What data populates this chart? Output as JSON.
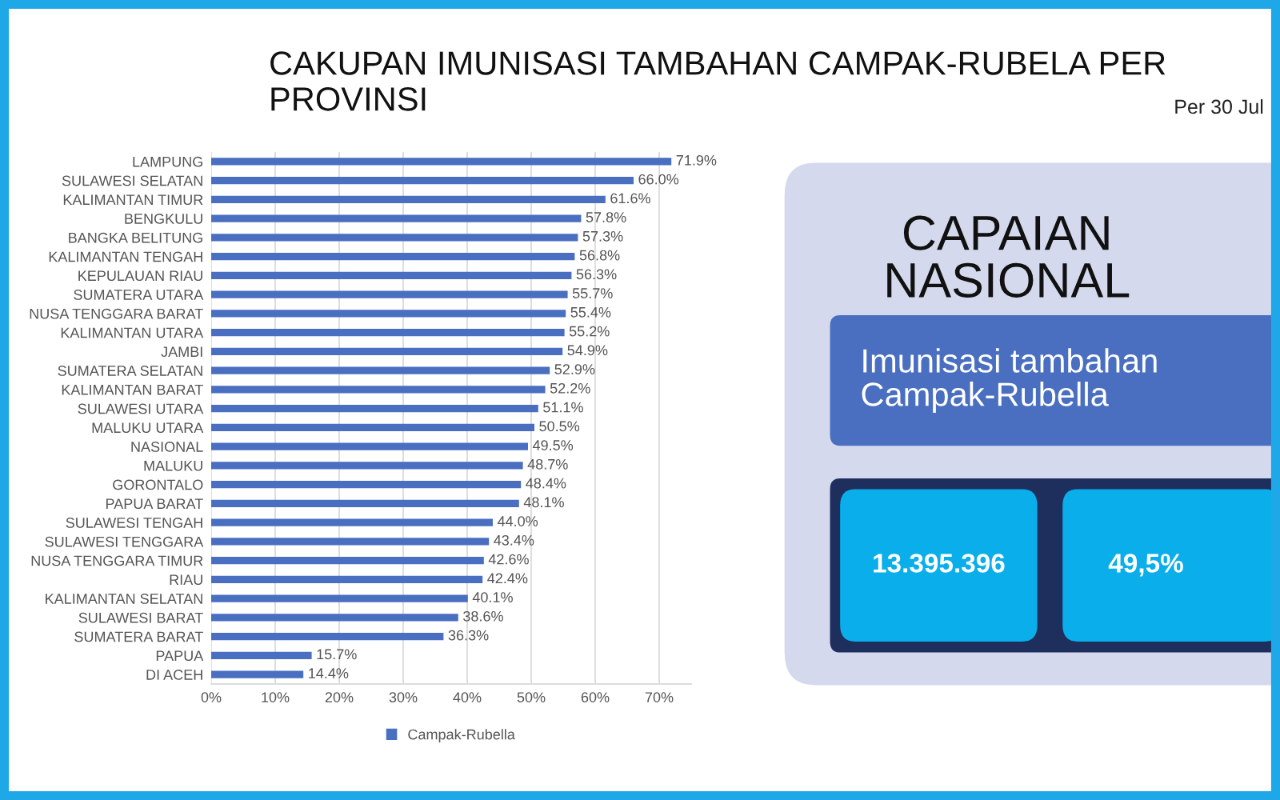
{
  "chart_data": [
    {
      "type": "bar",
      "orientation": "horizontal",
      "title": "CAKUPAN IMUNISASI TAMBAHAN CAMPAK-RUBELA PER PROVINSI",
      "categories": [
        "LAMPUNG",
        "SULAWESI SELATAN",
        "KALIMANTAN TIMUR",
        "BENGKULU",
        "BANGKA BELITUNG",
        "KALIMANTAN TENGAH",
        "KEPULAUAN RIAU",
        "SUMATERA UTARA",
        "NUSA TENGGARA BARAT",
        "KALIMANTAN UTARA",
        "JAMBI",
        "SUMATERA SELATAN",
        "KALIMANTAN BARAT",
        "SULAWESI UTARA",
        "MALUKU UTARA",
        "NASIONAL",
        "MALUKU",
        "GORONTALO",
        "PAPUA BARAT",
        "SULAWESI TENGAH",
        "SULAWESI TENGGARA",
        "NUSA TENGGARA TIMUR",
        "RIAU",
        "KALIMANTAN SELATAN",
        "SULAWESI BARAT",
        "SUMATERA BARAT",
        "PAPUA",
        "DI ACEH"
      ],
      "series": [
        {
          "name": "Campak-Rubella",
          "color": "#4a6fc0",
          "values": [
            71.9,
            66.0,
            61.6,
            57.8,
            57.3,
            56.8,
            56.3,
            55.7,
            55.4,
            55.2,
            54.9,
            52.9,
            52.2,
            51.1,
            50.5,
            49.5,
            48.7,
            48.4,
            48.1,
            44.0,
            43.4,
            42.6,
            42.4,
            40.1,
            38.6,
            36.3,
            15.7,
            14.4
          ],
          "value_labels": [
            "71.9%",
            "66.0%",
            "61.6%",
            "57.8%",
            "57.3%",
            "56.8%",
            "56.3%",
            "55.7%",
            "55.4%",
            "55.2%",
            "54.9%",
            "52.9%",
            "52.2%",
            "51.1%",
            "50.5%",
            "49.5%",
            "48.7%",
            "48.4%",
            "48.1%",
            "44.0%",
            "43.4%",
            "42.6%",
            "42.4%",
            "40.1%",
            "38.6%",
            "36.3%",
            "15.7%",
            "14.4%"
          ]
        }
      ],
      "xlim": [
        0,
        75
      ],
      "xticks": [
        {
          "value": 0,
          "label": "0%"
        },
        {
          "value": 10,
          "label": "10%"
        },
        {
          "value": 20,
          "label": "20%"
        },
        {
          "value": 30,
          "label": "30%"
        },
        {
          "value": 40,
          "label": "40%"
        },
        {
          "value": 50,
          "label": "50%"
        },
        {
          "value": 60,
          "label": "60%"
        },
        {
          "value": 70,
          "label": "70%"
        }
      ],
      "grid": "x",
      "legend": "bottom"
    },
    {
      "type": "other",
      "title": "CAPAIAN NASIONAL",
      "annotations": [
        "Imunisasi tambahan Campak-Rubella",
        "13.395.396",
        "49,5%",
        "Per 30 Jul"
      ]
    }
  ]
}
